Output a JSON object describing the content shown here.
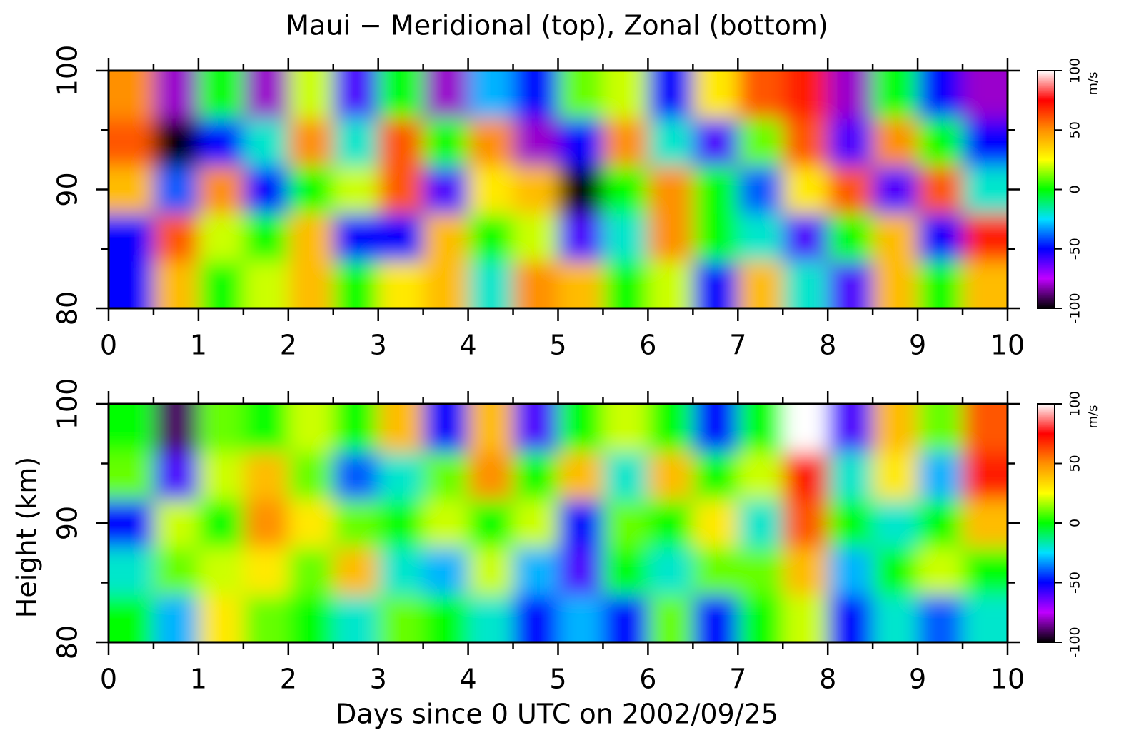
{
  "chart_data": [
    {
      "type": "heatmap",
      "title": "Maui − Meridional (top), Zonal (bottom)",
      "x": [
        0.25,
        0.75,
        1.25,
        1.75,
        2.25,
        2.75,
        3.25,
        3.75,
        4.25,
        4.75,
        5.25,
        5.75,
        6.25,
        6.75,
        7.25,
        7.75,
        8.25,
        8.75,
        9.25,
        9.75
      ],
      "y": [
        82,
        86,
        90,
        94,
        98
      ],
      "values": [
        [
          -50,
          40,
          0,
          20,
          40,
          0,
          30,
          40,
          -20,
          50,
          40,
          0,
          20,
          -50,
          40,
          -20,
          -60,
          40,
          0,
          40
        ],
        [
          -50,
          60,
          20,
          0,
          40,
          -50,
          -50,
          40,
          0,
          20,
          -60,
          -20,
          50,
          0,
          -20,
          -60,
          0,
          40,
          -50,
          70
        ],
        [
          40,
          -40,
          50,
          -50,
          0,
          20,
          60,
          -60,
          30,
          40,
          -100,
          0,
          50,
          0,
          -40,
          30,
          60,
          -60,
          60,
          -20
        ],
        [
          60,
          -100,
          -50,
          -20,
          50,
          -20,
          60,
          0,
          50,
          -80,
          -50,
          50,
          -20,
          -60,
          10,
          60,
          -60,
          50,
          0,
          -50
        ],
        [
          50,
          -80,
          0,
          -80,
          20,
          -60,
          0,
          -80,
          -30,
          -50,
          10,
          20,
          -50,
          30,
          60,
          70,
          -80,
          0,
          -50,
          -80
        ]
      ],
      "xlim": [
        0,
        10
      ],
      "xticks": [
        0,
        1,
        2,
        3,
        4,
        5,
        6,
        7,
        8,
        9,
        10
      ],
      "xminorticks": [
        0.5,
        1.5,
        2.5,
        3.5,
        4.5,
        5.5,
        6.5,
        7.5,
        8.5,
        9.5
      ],
      "ylim": [
        80,
        100
      ],
      "yticks": [
        80,
        90,
        100
      ],
      "yminorticks": [
        85,
        95
      ],
      "clim": [
        -100,
        100
      ],
      "cticks": [
        -100,
        -50,
        0,
        50,
        100
      ],
      "colorbar_label": "m/s",
      "colormap": [
        "#000000",
        "#c000ff",
        "#0000ff",
        "#00e0ff",
        "#00ff00",
        "#ffff00",
        "#ff9000",
        "#ff0000",
        "#ffffff"
      ]
    },
    {
      "type": "heatmap",
      "y_label": "Height (km)",
      "x_label": "Days since 0 UTC on 2002/09/25",
      "x": [
        0.25,
        0.75,
        1.25,
        1.75,
        2.25,
        2.75,
        3.25,
        3.75,
        4.25,
        4.75,
        5.25,
        5.75,
        6.25,
        6.75,
        7.25,
        7.75,
        8.25,
        8.75,
        9.25,
        9.75
      ],
      "y": [
        82,
        86,
        90,
        94,
        98
      ],
      "values": [
        [
          0,
          -30,
          30,
          10,
          0,
          -20,
          10,
          0,
          -20,
          -50,
          -30,
          -50,
          10,
          -50,
          0,
          20,
          -50,
          -20,
          -40,
          -20
        ],
        [
          -20,
          10,
          20,
          30,
          10,
          40,
          -20,
          -30,
          20,
          -30,
          -60,
          0,
          -20,
          10,
          10,
          40,
          -30,
          0,
          20,
          0
        ],
        [
          -50,
          20,
          0,
          50,
          30,
          10,
          0,
          20,
          0,
          20,
          -50,
          10,
          0,
          30,
          -20,
          60,
          0,
          -20,
          0,
          40
        ],
        [
          10,
          -60,
          20,
          40,
          10,
          -40,
          -20,
          10,
          50,
          0,
          40,
          -20,
          40,
          0,
          20,
          70,
          -20,
          30,
          -30,
          70
        ],
        [
          0,
          -90,
          10,
          0,
          20,
          0,
          40,
          -50,
          40,
          -60,
          0,
          20,
          0,
          -50,
          0,
          100,
          -60,
          40,
          10,
          60
        ]
      ],
      "xlim": [
        0,
        10
      ],
      "xticks": [
        0,
        1,
        2,
        3,
        4,
        5,
        6,
        7,
        8,
        9,
        10
      ],
      "xminorticks": [
        0.5,
        1.5,
        2.5,
        3.5,
        4.5,
        5.5,
        6.5,
        7.5,
        8.5,
        9.5
      ],
      "ylim": [
        80,
        100
      ],
      "yticks": [
        80,
        90,
        100
      ],
      "yminorticks": [
        85,
        95
      ],
      "clim": [
        -100,
        100
      ],
      "cticks": [
        -100,
        -50,
        0,
        50,
        100
      ],
      "colorbar_label": "m/s",
      "colormap": [
        "#000000",
        "#c000ff",
        "#0000ff",
        "#00e0ff",
        "#00ff00",
        "#ffff00",
        "#ff9000",
        "#ff0000",
        "#ffffff"
      ]
    }
  ]
}
